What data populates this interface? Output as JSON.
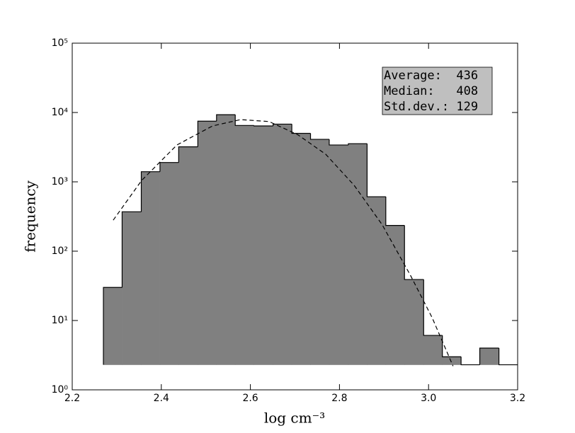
{
  "chart_data": {
    "type": "histogram",
    "xlabel": "log cm⁻³",
    "ylabel": "frequency",
    "log_y": true,
    "bins": [
      2.27,
      2.312,
      2.355,
      2.397,
      2.439,
      2.482,
      2.524,
      2.566,
      2.608,
      2.651,
      2.693,
      2.735,
      2.777,
      2.82,
      2.862,
      2.904,
      2.946,
      2.989,
      3.031,
      3.073,
      3.115,
      3.158,
      3.2
    ],
    "values": [
      30,
      370,
      1400,
      1900,
      3200,
      7500,
      9300,
      6500,
      6400,
      6800,
      5000,
      4100,
      3400,
      3550,
      610,
      235,
      39,
      6.1,
      3,
      0,
      4,
      0
    ],
    "bottom": 2.3,
    "color": "#808080",
    "edge_color": "#000000",
    "fit": {
      "x": [
        2.292,
        2.356,
        2.435,
        2.515,
        2.578,
        2.642,
        2.706,
        2.769,
        2.833,
        2.896,
        2.96,
        3.008,
        3.055
      ],
      "values": [
        280,
        1050,
        3400,
        6400,
        7900,
        7400,
        4800,
        2500,
        890,
        240,
        44,
        11,
        2.2
      ]
    },
    "stats": [
      "Average:  436",
      "Median:   408",
      "Std.dev.: 129"
    ],
    "xlim": [
      2.2,
      3.2
    ],
    "xticks": [
      2.2,
      2.4,
      2.6,
      2.8,
      {
        "value": 3,
        "label": "3.0"
      },
      3.2
    ],
    "ylim": [
      1,
      100000
    ],
    "yticks": [
      {
        "value": 1,
        "label": "10⁰"
      },
      {
        "value": 10,
        "label": "10¹"
      },
      {
        "value": 100,
        "label": "10²"
      },
      {
        "value": 1000,
        "label": "10³"
      },
      {
        "value": 10000,
        "label": "10⁴"
      },
      {
        "value": 100000,
        "label": "10⁵"
      }
    ]
  }
}
